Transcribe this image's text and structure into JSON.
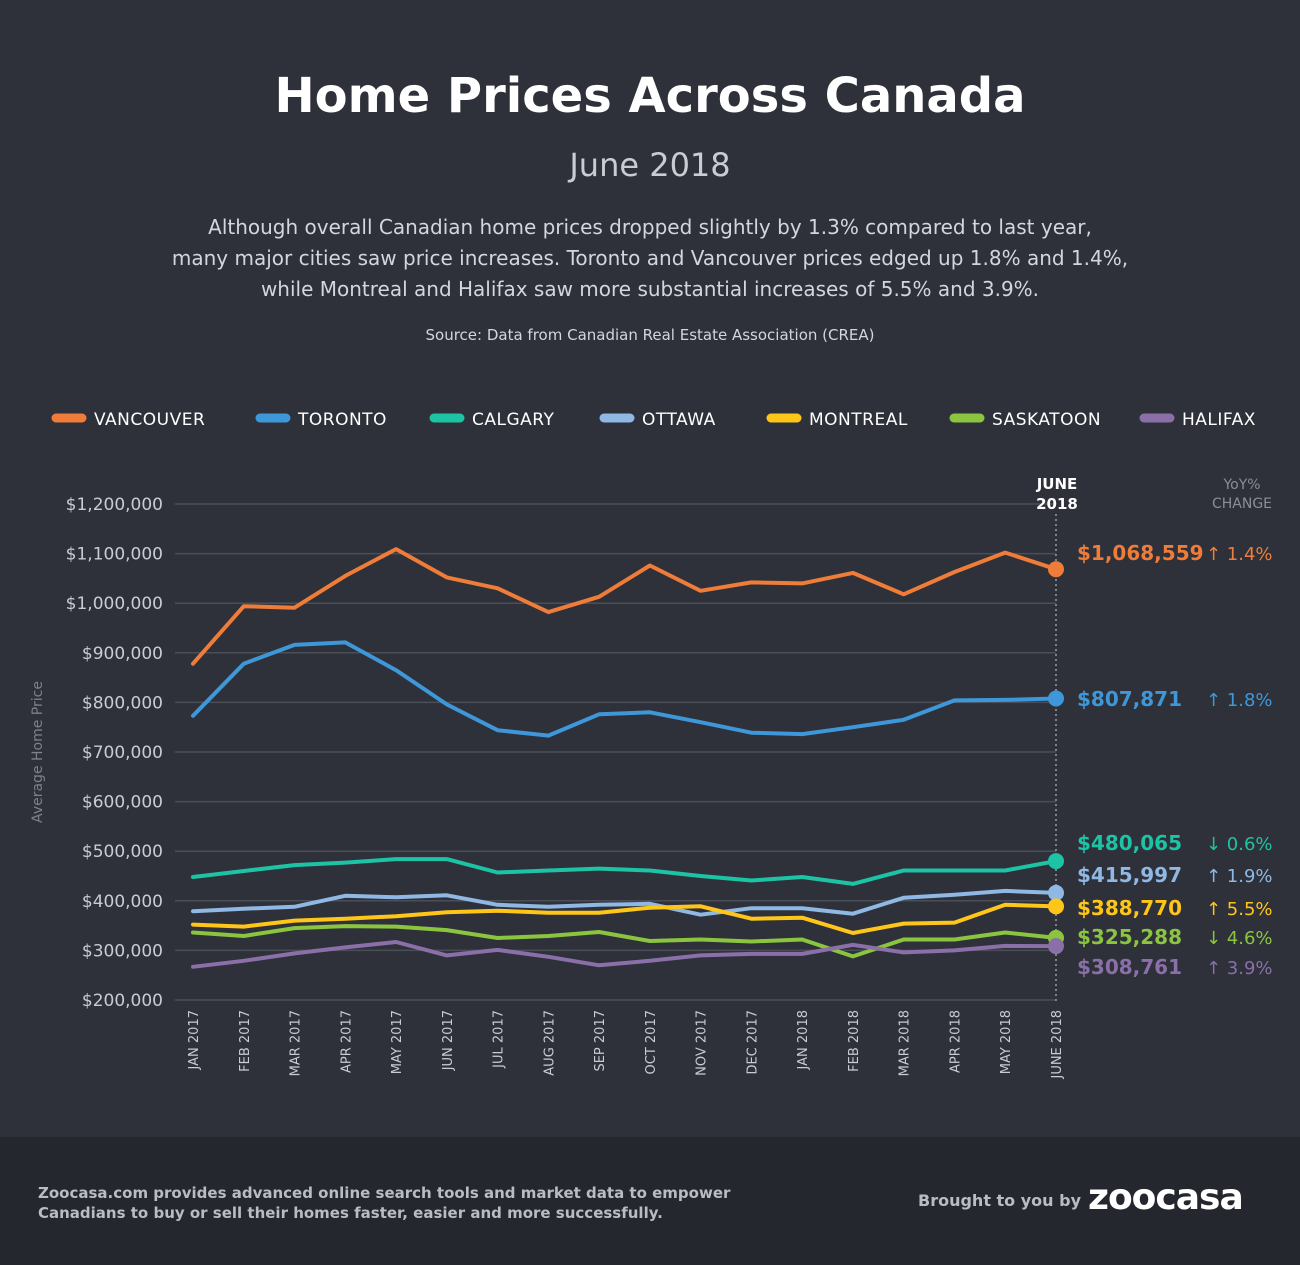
{
  "header": {
    "title": "Home Prices Across Canada",
    "subtitle": "June 2018",
    "description_lines": [
      "Although overall Canadian home prices dropped slightly by 1.3% compared to last year,",
      "many major cities saw price increases. Toronto and Vancouver prices edged up 1.8% and 1.4%,",
      "while Montreal and Halifax saw more substantial increases of 5.5% and 3.9%."
    ],
    "source": "Source: Data from Canadian Real Estate Association (CREA)"
  },
  "chart_data": {
    "type": "line",
    "ylabel": "Average Home Price",
    "ylim": [
      200000,
      1200000
    ],
    "yticks": [
      "$200,000",
      "$300,000",
      "$400,000",
      "$500,000",
      "$600,000",
      "$700,000",
      "$800,000",
      "$900,000",
      "$1,000,000",
      "$1,100,000",
      "$1,200,000"
    ],
    "grid": true,
    "legend_position": "top",
    "categories": [
      "JAN 2017",
      "FEB 2017",
      "MAR 2017",
      "APR 2017",
      "MAY 2017",
      "JUN 2017",
      "JUL 2017",
      "AUG 2017",
      "SEP 2017",
      "OCT 2017",
      "NOV 2017",
      "DEC 2017",
      "JAN 2018",
      "FEB 2018",
      "MAR 2018",
      "APR 2018",
      "MAY 2018",
      "JUNE 2018"
    ],
    "end_header": {
      "line1": "JUNE",
      "line2": "2018"
    },
    "yoy_header": {
      "line1": "YoY%",
      "line2": "CHANGE"
    },
    "series": [
      {
        "name": "VANCOUVER",
        "color": "#ef7d39",
        "values": [
          878000,
          994000,
          991000,
          1055000,
          1109000,
          1052000,
          1030000,
          982000,
          1013000,
          1076000,
          1025000,
          1042000,
          1040000,
          1061000,
          1018000,
          1063000,
          1102000,
          1068559
        ],
        "end_label": "$1,068,559",
        "yoy": "1.4%",
        "yoy_dir": "up"
      },
      {
        "name": "TORONTO",
        "color": "#3e97d8",
        "values": [
          773000,
          878000,
          916000,
          921000,
          865000,
          796000,
          744000,
          733000,
          776000,
          780000,
          760000,
          739000,
          736000,
          750000,
          765000,
          804000,
          805000,
          807871
        ],
        "end_label": "$807,871",
        "yoy": "1.8%",
        "yoy_dir": "up"
      },
      {
        "name": "CALGARY",
        "color": "#1dc3a5",
        "values": [
          448000,
          460000,
          472000,
          477000,
          484000,
          484000,
          457000,
          461000,
          465000,
          461000,
          450000,
          441000,
          448000,
          434000,
          461000,
          461000,
          461000,
          480065
        ],
        "end_label": "$480,065",
        "yoy": "0.6%",
        "yoy_dir": "down"
      },
      {
        "name": "OTTAWA",
        "color": "#8fb8e4",
        "values": [
          379000,
          384000,
          388000,
          410000,
          407000,
          411000,
          392000,
          388000,
          392000,
          394000,
          372000,
          385000,
          385000,
          374000,
          406000,
          412000,
          420000,
          415997
        ],
        "end_label": "$415,997",
        "yoy": "1.9%",
        "yoy_dir": "up"
      },
      {
        "name": "MONTREAL",
        "color": "#ffc61a",
        "values": [
          352000,
          348000,
          360000,
          364000,
          369000,
          377000,
          380000,
          376000,
          376000,
          386000,
          389000,
          364000,
          366000,
          335000,
          354000,
          356000,
          392000,
          388770
        ],
        "end_label": "$388,770",
        "yoy": "5.5%",
        "yoy_dir": "up"
      },
      {
        "name": "SASKATOON",
        "color": "#8bc53f",
        "values": [
          336000,
          329000,
          345000,
          349000,
          348000,
          341000,
          325000,
          329000,
          337000,
          319000,
          322000,
          318000,
          322000,
          288000,
          322000,
          322000,
          336000,
          325288
        ],
        "end_label": "$325,288",
        "yoy": "4.6%",
        "yoy_dir": "down"
      },
      {
        "name": "HALIFAX",
        "color": "#8a6fa8",
        "values": [
          267000,
          279000,
          294000,
          306000,
          317000,
          290000,
          301000,
          287000,
          270000,
          279000,
          290000,
          293000,
          293000,
          311000,
          296000,
          300000,
          309000,
          308761
        ],
        "end_label": "$308,761",
        "yoy": "3.9%",
        "yoy_dir": "up"
      }
    ]
  },
  "footer": {
    "description_lines": [
      "Zoocasa.com provides advanced online search tools and market data to empower",
      "Canadians to buy or sell their homes faster, easier and more successfully."
    ],
    "brought_by": "Brought to you by",
    "logo_text": "zoocasa"
  }
}
